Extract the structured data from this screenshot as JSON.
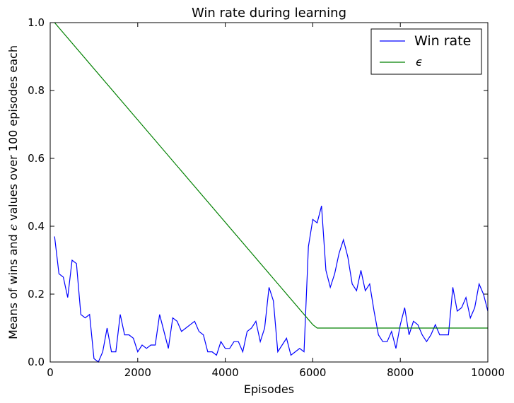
{
  "chart_data": {
    "type": "line",
    "title": "Win rate during learning",
    "xlabel": "Episodes",
    "ylabel_parts": [
      "Means of wins and ",
      "ϵ",
      " values over 100 episodes each"
    ],
    "xlim": [
      0,
      10000
    ],
    "ylim": [
      0,
      1
    ],
    "xticks": [
      0,
      2000,
      4000,
      6000,
      8000,
      10000
    ],
    "yticks": [
      0.0,
      0.2,
      0.4,
      0.6,
      0.8,
      1.0
    ],
    "xtick_labels": [
      "0",
      "2000",
      "4000",
      "6000",
      "8000",
      "10000"
    ],
    "ytick_labels": [
      "0.0",
      "0.2",
      "0.4",
      "0.6",
      "0.8",
      "1.0"
    ],
    "grid": false,
    "legend_position": "top-right",
    "series": [
      {
        "name": "Win rate",
        "color": "#0000ff",
        "x": [
          100,
          200,
          300,
          400,
          500,
          600,
          700,
          800,
          900,
          1000,
          1100,
          1200,
          1300,
          1400,
          1500,
          1600,
          1700,
          1800,
          1900,
          2000,
          2100,
          2200,
          2300,
          2400,
          2500,
          2600,
          2700,
          2800,
          2900,
          3000,
          3100,
          3200,
          3300,
          3400,
          3500,
          3600,
          3700,
          3800,
          3900,
          4000,
          4100,
          4200,
          4300,
          4400,
          4500,
          4600,
          4700,
          4800,
          4900,
          5000,
          5100,
          5200,
          5300,
          5400,
          5500,
          5600,
          5700,
          5800,
          5900,
          6000,
          6100,
          6200,
          6300,
          6400,
          6500,
          6600,
          6700,
          6800,
          6900,
          7000,
          7100,
          7200,
          7300,
          7400,
          7500,
          7600,
          7700,
          7800,
          7900,
          8000,
          8100,
          8200,
          8300,
          8400,
          8500,
          8600,
          8700,
          8800,
          8900,
          9000,
          9100,
          9200,
          9300,
          9400,
          9500,
          9600,
          9700,
          9800,
          9900,
          10000
        ],
        "y": [
          0.37,
          0.26,
          0.25,
          0.19,
          0.3,
          0.29,
          0.14,
          0.13,
          0.14,
          0.01,
          0.0,
          0.03,
          0.1,
          0.03,
          0.03,
          0.14,
          0.08,
          0.08,
          0.07,
          0.03,
          0.05,
          0.04,
          0.05,
          0.05,
          0.14,
          0.09,
          0.04,
          0.13,
          0.12,
          0.09,
          0.1,
          0.11,
          0.12,
          0.09,
          0.08,
          0.03,
          0.03,
          0.02,
          0.06,
          0.04,
          0.04,
          0.06,
          0.06,
          0.03,
          0.09,
          0.1,
          0.12,
          0.06,
          0.1,
          0.22,
          0.18,
          0.03,
          0.05,
          0.07,
          0.02,
          0.03,
          0.04,
          0.03,
          0.34,
          0.42,
          0.41,
          0.46,
          0.27,
          0.22,
          0.26,
          0.32,
          0.36,
          0.31,
          0.23,
          0.21,
          0.27,
          0.21,
          0.23,
          0.15,
          0.08,
          0.06,
          0.06,
          0.09,
          0.04,
          0.11,
          0.16,
          0.08,
          0.12,
          0.11,
          0.08,
          0.06,
          0.08,
          0.11,
          0.08,
          0.08,
          0.08,
          0.22,
          0.15,
          0.16,
          0.19,
          0.13,
          0.16,
          0.23,
          0.2,
          0.15
        ]
      },
      {
        "name": "ϵ",
        "color": "#008000",
        "x": [
          100,
          6000,
          6100,
          10000
        ],
        "y": [
          1.0,
          0.11,
          0.1,
          0.1
        ]
      }
    ]
  }
}
